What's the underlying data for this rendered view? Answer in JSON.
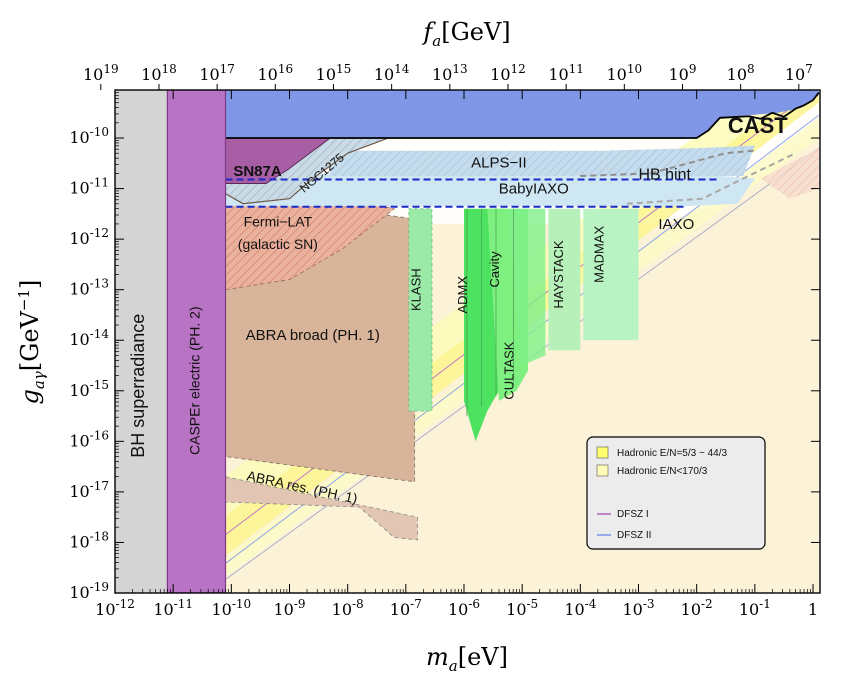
{
  "chart_data": {
    "type": "area",
    "x_axis": {
      "label_main": "m",
      "label_sub": "a",
      "label_unit": "[eV]",
      "scale": "log",
      "range": [
        1e-12,
        1
      ],
      "ticks": [
        {
          "exp": -12,
          "text": "-12"
        },
        {
          "exp": -11,
          "text": "-11"
        },
        {
          "exp": -10,
          "text": "-10"
        },
        {
          "exp": -9,
          "text": "-9"
        },
        {
          "exp": -8,
          "text": "-8"
        },
        {
          "exp": -7,
          "text": "-7"
        },
        {
          "exp": -6,
          "text": "-6"
        },
        {
          "exp": -5,
          "text": "-5"
        },
        {
          "exp": -4,
          "text": "-4"
        },
        {
          "exp": -3,
          "text": "-3"
        },
        {
          "exp": -2,
          "text": "-2"
        },
        {
          "exp": -1,
          "text": "-1"
        }
      ],
      "tick_one": "1"
    },
    "top_axis": {
      "label_main": "f",
      "label_sub": "a",
      "label_unit": "[GeV]",
      "scale": "log",
      "ticks": [
        {
          "exp": 19,
          "text": "19"
        },
        {
          "exp": 18,
          "text": "18"
        },
        {
          "exp": 17,
          "text": "17"
        },
        {
          "exp": 16,
          "text": "16"
        },
        {
          "exp": 15,
          "text": "15"
        },
        {
          "exp": 14,
          "text": "14"
        },
        {
          "exp": 13,
          "text": "13"
        },
        {
          "exp": 12,
          "text": "12"
        },
        {
          "exp": 11,
          "text": "11"
        },
        {
          "exp": 10,
          "text": "10"
        },
        {
          "exp": 9,
          "text": "9"
        },
        {
          "exp": 8,
          "text": "8"
        },
        {
          "exp": 7,
          "text": "7"
        }
      ]
    },
    "y_axis": {
      "label_main": "g",
      "label_sub": "aγ",
      "label_unit": "[GeV",
      "label_sup": "−1",
      "label_close": "]",
      "scale": "log",
      "range": [
        1e-19,
        1e-09
      ],
      "ticks": [
        {
          "exp": -10,
          "text": "-10"
        },
        {
          "exp": -11,
          "text": "-11"
        },
        {
          "exp": -12,
          "text": "-12"
        },
        {
          "exp": -13,
          "text": "-13"
        },
        {
          "exp": -14,
          "text": "-14"
        },
        {
          "exp": -15,
          "text": "-15"
        },
        {
          "exp": -16,
          "text": "-16"
        },
        {
          "exp": -17,
          "text": "-17"
        },
        {
          "exp": -18,
          "text": "-18"
        },
        {
          "exp": -19,
          "text": "-19"
        }
      ]
    },
    "tick_base": "10",
    "regions": [
      {
        "id": "bh",
        "label": "BH superradiance",
        "color": "#d4d4d4",
        "x": [
          -12,
          -11.1
        ],
        "y": [
          -19,
          -9
        ]
      },
      {
        "id": "casper",
        "label": "CASPEr  electric (PH. 2)",
        "color": "#b873c4",
        "x": [
          -11.1,
          -10.1
        ],
        "y": [
          -19,
          -9
        ]
      },
      {
        "id": "cast",
        "label": "CAST",
        "color": "#7f97e6"
      },
      {
        "id": "sn87a",
        "label": "SN87A",
        "color": "#a75ea5"
      },
      {
        "id": "ngc1275",
        "label": "NGC1275",
        "color": "#c4a99a"
      },
      {
        "id": "alps",
        "label": "ALPS−II",
        "color": "#bcd7ea"
      },
      {
        "id": "hbhint",
        "label": "HB hint",
        "color": "#e01515"
      },
      {
        "id": "babyiaxo",
        "label": "BabyIAXO",
        "color": "#cfe6f3"
      },
      {
        "id": "iaxo",
        "label": "IAXO",
        "color": "#fbf2d8"
      },
      {
        "id": "fermi",
        "label": "Fermi−LAT",
        "label2": "(galactic SN)",
        "color": "#e9a291"
      },
      {
        "id": "abra_broad",
        "label": "ABRA broad (PH. 1)",
        "color": "#d8b59a"
      },
      {
        "id": "abra_res",
        "label": "ABRA res. (PH. 1)",
        "color": "#e2c6b3"
      },
      {
        "id": "klash",
        "label": "KLASH",
        "color": "#9ceaa8"
      },
      {
        "id": "admx",
        "label": "ADMX",
        "color": "#4de25f"
      },
      {
        "id": "cavity",
        "label": "Cavity",
        "color": "#7ef07f"
      },
      {
        "id": "cultask",
        "label": "CULTASK",
        "color": "#7ff08a"
      },
      {
        "id": "haystack",
        "label": "HAYSTACK",
        "color": "#b8f0ba"
      },
      {
        "id": "madmax",
        "label": "MADMAX",
        "color": "#b9f3c4"
      }
    ],
    "qcd_band": {
      "lines": [
        {
          "name": "DFSZ I",
          "color": "#c07ac4",
          "offset": 0.02
        },
        {
          "name": "DFSZ II",
          "color": "#8fa3e8",
          "offset": -0.55
        }
      ]
    },
    "legend": {
      "position": "bottom-right",
      "entries": [
        {
          "label": "Hadronic E/N=5/3 − 44/3",
          "color": "#ffff6e",
          "kind": "box"
        },
        {
          "label": "Hadronic E/N<170/3",
          "color": "#fefcb8",
          "kind": "box"
        },
        {
          "label": "DFSZ I",
          "color": "#c07ac4",
          "kind": "line"
        },
        {
          "label": "DFSZ II",
          "color": "#8fa3e8",
          "kind": "line"
        }
      ]
    }
  }
}
